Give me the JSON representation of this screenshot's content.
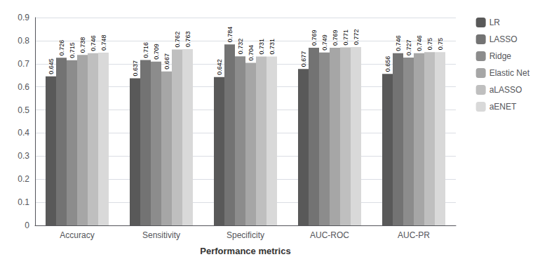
{
  "chart_data": {
    "type": "bar",
    "xlabel": "Performance metrics",
    "categories": [
      "Accuracy",
      "Sensitivity",
      "Specificity",
      "AUC-ROC",
      "AUC-PR"
    ],
    "series": [
      {
        "name": "LR",
        "color": "#595959",
        "values": [
          0.645,
          0.637,
          0.642,
          0.677,
          0.656
        ]
      },
      {
        "name": "LASSO",
        "color": "#737373",
        "values": [
          0.726,
          0.716,
          0.784,
          0.769,
          0.746
        ]
      },
      {
        "name": "Ridge",
        "color": "#8C8C8C",
        "values": [
          0.715,
          0.709,
          0.732,
          0.749,
          0.727
        ]
      },
      {
        "name": "Elastic Net",
        "color": "#A6A6A6",
        "values": [
          0.738,
          0.667,
          0.704,
          0.769,
          0.746
        ]
      },
      {
        "name": "aLASSO",
        "color": "#BFBFBF",
        "values": [
          0.746,
          0.762,
          0.731,
          0.771,
          0.75
        ]
      },
      {
        "name": "aENET",
        "color": "#D9D9D9",
        "values": [
          0.748,
          0.763,
          0.731,
          0.772,
          0.75
        ]
      }
    ],
    "ylim": [
      0,
      0.9
    ],
    "yticks": [
      0,
      0.1,
      0.2,
      0.3,
      0.4,
      0.5,
      0.6,
      0.7,
      0.8,
      0.9
    ],
    "grid": true,
    "legend": "upper right",
    "data_labels": true
  }
}
